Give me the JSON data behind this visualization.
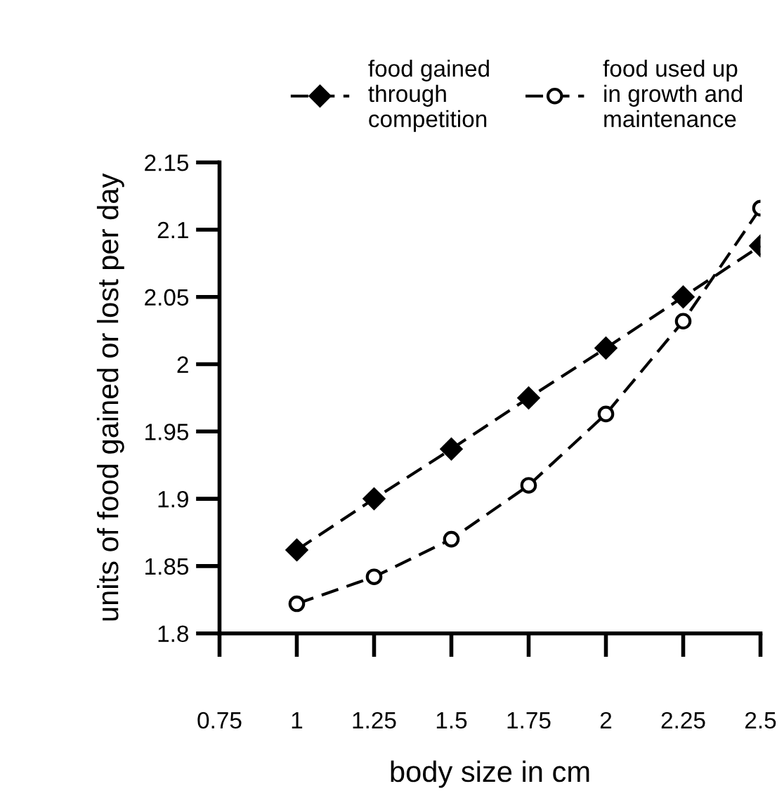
{
  "chart_data": {
    "type": "line",
    "xlabel": "body size in cm",
    "ylabel": "units of food gained or lost per day",
    "x": [
      1,
      1.25,
      1.5,
      1.75,
      2,
      2.25,
      2.5
    ],
    "series": [
      {
        "name": "food gained\nthrough\ncompetition",
        "color": "#000000",
        "values": [
          1.862,
          1.9,
          1.937,
          1.975,
          2.012,
          2.05,
          2.088
        ],
        "marker": "diamond",
        "line_style": "dashed"
      },
      {
        "name": "food used up\nin growth and\nmaintenance",
        "color": "#000000",
        "values": [
          1.822,
          1.842,
          1.87,
          1.91,
          1.963,
          2.032,
          2.116
        ],
        "marker": "circle",
        "line_style": "dashed"
      }
    ],
    "xlim": [
      0.75,
      2.5
    ],
    "xticks": [
      0.75,
      1,
      1.25,
      1.5,
      1.75,
      2,
      2.25,
      2.5
    ],
    "ylim": [
      1.8,
      2.15
    ],
    "yticks": [
      1.8,
      1.85,
      1.9,
      1.95,
      2,
      2.05,
      2.1,
      2.15
    ],
    "grid": false,
    "legend": "top"
  }
}
